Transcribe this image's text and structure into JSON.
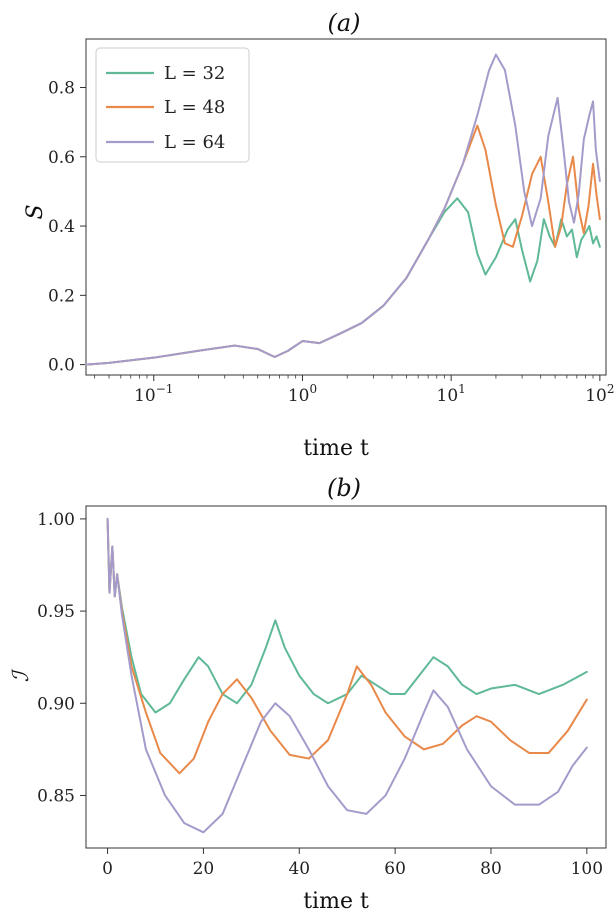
{
  "colors": {
    "L32": "#5fb996",
    "L48": "#e8894a",
    "L64": "#a49bcb"
  },
  "chart_data": [
    {
      "id": "a",
      "type": "line",
      "title": "(a)",
      "xlabel": "time t",
      "ylabel": "S",
      "xscale": "log",
      "xlim": [
        0.035,
        110
      ],
      "ylim": [
        -0.03,
        0.94
      ],
      "xticks": [
        {
          "value": 0.1,
          "base": "10",
          "exp": "−1"
        },
        {
          "value": 1,
          "base": "10",
          "exp": "0"
        },
        {
          "value": 10,
          "base": "10",
          "exp": "1"
        },
        {
          "value": 100,
          "base": "10",
          "exp": "2"
        }
      ],
      "yticks": [
        {
          "value": 0.0,
          "label": "0.0"
        },
        {
          "value": 0.2,
          "label": "0.2"
        },
        {
          "value": 0.4,
          "label": "0.4"
        },
        {
          "value": 0.6,
          "label": "0.6"
        },
        {
          "value": 0.8,
          "label": "0.8"
        }
      ],
      "legend": {
        "position": "top-left"
      },
      "series": [
        {
          "name": "L = 32",
          "color": "#5fb996",
          "points": [
            [
              0.035,
              0.0
            ],
            [
              0.05,
              0.005
            ],
            [
              0.1,
              0.02
            ],
            [
              0.2,
              0.04
            ],
            [
              0.35,
              0.055
            ],
            [
              0.5,
              0.045
            ],
            [
              0.65,
              0.022
            ],
            [
              0.8,
              0.04
            ],
            [
              1.0,
              0.068
            ],
            [
              1.3,
              0.062
            ],
            [
              1.8,
              0.09
            ],
            [
              2.5,
              0.12
            ],
            [
              3.5,
              0.17
            ],
            [
              5,
              0.25
            ],
            [
              7,
              0.36
            ],
            [
              9,
              0.44
            ],
            [
              11,
              0.48
            ],
            [
              13,
              0.44
            ],
            [
              15,
              0.32
            ],
            [
              17,
              0.26
            ],
            [
              20,
              0.31
            ],
            [
              24,
              0.39
            ],
            [
              27,
              0.42
            ],
            [
              30,
              0.33
            ],
            [
              34,
              0.24
            ],
            [
              38,
              0.3
            ],
            [
              42,
              0.42
            ],
            [
              46,
              0.37
            ],
            [
              50,
              0.34
            ],
            [
              55,
              0.42
            ],
            [
              60,
              0.37
            ],
            [
              65,
              0.39
            ],
            [
              70,
              0.31
            ],
            [
              75,
              0.36
            ],
            [
              80,
              0.38
            ],
            [
              85,
              0.4
            ],
            [
              90,
              0.35
            ],
            [
              95,
              0.37
            ],
            [
              100,
              0.34
            ]
          ]
        },
        {
          "name": "L = 48",
          "color": "#e8894a",
          "points": [
            [
              0.035,
              0.0
            ],
            [
              0.05,
              0.005
            ],
            [
              0.1,
              0.02
            ],
            [
              0.2,
              0.04
            ],
            [
              0.35,
              0.055
            ],
            [
              0.5,
              0.045
            ],
            [
              0.65,
              0.022
            ],
            [
              0.8,
              0.04
            ],
            [
              1.0,
              0.068
            ],
            [
              1.3,
              0.062
            ],
            [
              1.8,
              0.09
            ],
            [
              2.5,
              0.12
            ],
            [
              3.5,
              0.17
            ],
            [
              5,
              0.25
            ],
            [
              7,
              0.36
            ],
            [
              9,
              0.45
            ],
            [
              12,
              0.58
            ],
            [
              15,
              0.69
            ],
            [
              17,
              0.62
            ],
            [
              20,
              0.46
            ],
            [
              23,
              0.35
            ],
            [
              26,
              0.34
            ],
            [
              30,
              0.43
            ],
            [
              35,
              0.55
            ],
            [
              40,
              0.6
            ],
            [
              45,
              0.47
            ],
            [
              50,
              0.34
            ],
            [
              55,
              0.4
            ],
            [
              60,
              0.52
            ],
            [
              66,
              0.6
            ],
            [
              72,
              0.45
            ],
            [
              78,
              0.38
            ],
            [
              84,
              0.46
            ],
            [
              90,
              0.58
            ],
            [
              95,
              0.49
            ],
            [
              100,
              0.42
            ]
          ]
        },
        {
          "name": "L = 64",
          "color": "#a49bcb",
          "points": [
            [
              0.035,
              0.0
            ],
            [
              0.05,
              0.005
            ],
            [
              0.1,
              0.02
            ],
            [
              0.2,
              0.04
            ],
            [
              0.35,
              0.055
            ],
            [
              0.5,
              0.045
            ],
            [
              0.65,
              0.022
            ],
            [
              0.8,
              0.04
            ],
            [
              1.0,
              0.068
            ],
            [
              1.3,
              0.062
            ],
            [
              1.8,
              0.09
            ],
            [
              2.5,
              0.12
            ],
            [
              3.5,
              0.17
            ],
            [
              5,
              0.25
            ],
            [
              7,
              0.36
            ],
            [
              9,
              0.45
            ],
            [
              12,
              0.58
            ],
            [
              15,
              0.72
            ],
            [
              18,
              0.85
            ],
            [
              20,
              0.895
            ],
            [
              23,
              0.85
            ],
            [
              27,
              0.69
            ],
            [
              31,
              0.5
            ],
            [
              35,
              0.4
            ],
            [
              40,
              0.48
            ],
            [
              45,
              0.66
            ],
            [
              52,
              0.77
            ],
            [
              57,
              0.62
            ],
            [
              62,
              0.47
            ],
            [
              67,
              0.41
            ],
            [
              72,
              0.49
            ],
            [
              78,
              0.65
            ],
            [
              85,
              0.72
            ],
            [
              90,
              0.76
            ],
            [
              94,
              0.62
            ],
            [
              100,
              0.53
            ]
          ]
        }
      ]
    },
    {
      "id": "b",
      "type": "line",
      "title": "(b)",
      "xlabel": "time t",
      "ylabel": "ℐ",
      "xscale": "linear",
      "xlim": [
        -4.5,
        104
      ],
      "ylim": [
        0.8215,
        1.007
      ],
      "xticks": [
        {
          "value": 0,
          "label": "0"
        },
        {
          "value": 20,
          "label": "20"
        },
        {
          "value": 40,
          "label": "40"
        },
        {
          "value": 60,
          "label": "60"
        },
        {
          "value": 80,
          "label": "80"
        },
        {
          "value": 100,
          "label": "100"
        }
      ],
      "yticks": [
        {
          "value": 0.85,
          "label": "0.85"
        },
        {
          "value": 0.9,
          "label": "0.90"
        },
        {
          "value": 0.95,
          "label": "0.95"
        },
        {
          "value": 1.0,
          "label": "1.00"
        }
      ],
      "series": [
        {
          "name": "L = 32",
          "color": "#5fb996",
          "points": [
            [
              0,
              1.0
            ],
            [
              0.4,
              0.96
            ],
            [
              1,
              0.985
            ],
            [
              1.5,
              0.958
            ],
            [
              2,
              0.97
            ],
            [
              3,
              0.952
            ],
            [
              5,
              0.925
            ],
            [
              7,
              0.905
            ],
            [
              10,
              0.895
            ],
            [
              13,
              0.9
            ],
            [
              16,
              0.913
            ],
            [
              19,
              0.925
            ],
            [
              21,
              0.92
            ],
            [
              24,
              0.905
            ],
            [
              27,
              0.9
            ],
            [
              30,
              0.91
            ],
            [
              33,
              0.93
            ],
            [
              35,
              0.945
            ],
            [
              37,
              0.93
            ],
            [
              40,
              0.915
            ],
            [
              43,
              0.905
            ],
            [
              46,
              0.9
            ],
            [
              50,
              0.905
            ],
            [
              53,
              0.915
            ],
            [
              56,
              0.91
            ],
            [
              59,
              0.905
            ],
            [
              62,
              0.905
            ],
            [
              65,
              0.915
            ],
            [
              68,
              0.925
            ],
            [
              71,
              0.92
            ],
            [
              74,
              0.91
            ],
            [
              77,
              0.905
            ],
            [
              80,
              0.908
            ],
            [
              85,
              0.91
            ],
            [
              90,
              0.905
            ],
            [
              95,
              0.91
            ],
            [
              100,
              0.917
            ]
          ]
        },
        {
          "name": "L = 48",
          "color": "#e8894a",
          "points": [
            [
              0,
              1.0
            ],
            [
              0.4,
              0.96
            ],
            [
              1,
              0.985
            ],
            [
              1.5,
              0.958
            ],
            [
              2,
              0.97
            ],
            [
              3,
              0.95
            ],
            [
              5,
              0.92
            ],
            [
              8,
              0.895
            ],
            [
              11,
              0.873
            ],
            [
              15,
              0.862
            ],
            [
              18,
              0.87
            ],
            [
              21,
              0.89
            ],
            [
              24,
              0.905
            ],
            [
              27,
              0.913
            ],
            [
              30,
              0.903
            ],
            [
              34,
              0.885
            ],
            [
              38,
              0.872
            ],
            [
              42,
              0.87
            ],
            [
              46,
              0.88
            ],
            [
              50,
              0.905
            ],
            [
              52,
              0.92
            ],
            [
              55,
              0.91
            ],
            [
              58,
              0.895
            ],
            [
              62,
              0.882
            ],
            [
              66,
              0.875
            ],
            [
              70,
              0.878
            ],
            [
              74,
              0.888
            ],
            [
              77,
              0.893
            ],
            [
              80,
              0.89
            ],
            [
              84,
              0.88
            ],
            [
              88,
              0.873
            ],
            [
              92,
              0.873
            ],
            [
              96,
              0.885
            ],
            [
              100,
              0.902
            ]
          ]
        },
        {
          "name": "L = 64",
          "color": "#a49bcb",
          "points": [
            [
              0,
              1.0
            ],
            [
              0.4,
              0.96
            ],
            [
              1,
              0.985
            ],
            [
              1.5,
              0.958
            ],
            [
              2,
              0.97
            ],
            [
              3,
              0.948
            ],
            [
              5,
              0.915
            ],
            [
              8,
              0.875
            ],
            [
              12,
              0.85
            ],
            [
              16,
              0.835
            ],
            [
              20,
              0.83
            ],
            [
              24,
              0.84
            ],
            [
              28,
              0.865
            ],
            [
              32,
              0.89
            ],
            [
              35,
              0.9
            ],
            [
              38,
              0.893
            ],
            [
              42,
              0.875
            ],
            [
              46,
              0.855
            ],
            [
              50,
              0.842
            ],
            [
              54,
              0.84
            ],
            [
              58,
              0.85
            ],
            [
              62,
              0.87
            ],
            [
              66,
              0.895
            ],
            [
              68,
              0.907
            ],
            [
              71,
              0.898
            ],
            [
              75,
              0.875
            ],
            [
              80,
              0.855
            ],
            [
              85,
              0.845
            ],
            [
              90,
              0.845
            ],
            [
              94,
              0.852
            ],
            [
              97,
              0.866
            ],
            [
              100,
              0.876
            ]
          ]
        }
      ]
    }
  ]
}
